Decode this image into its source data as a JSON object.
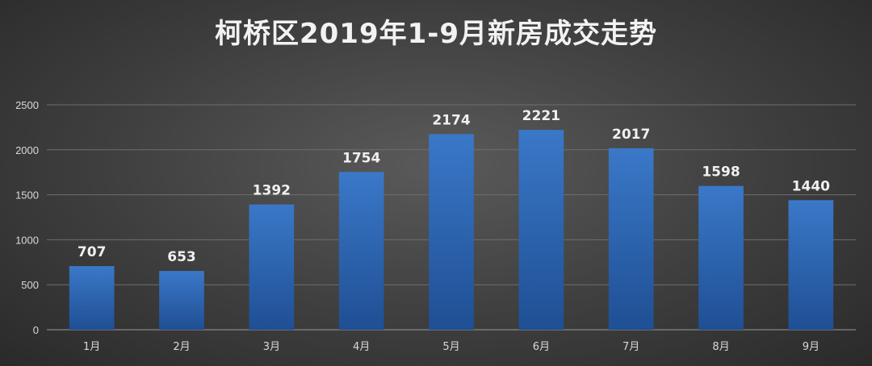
{
  "chart_data": {
    "type": "bar",
    "title": "柯桥区2019年1-9月新房成交走势",
    "categories": [
      "1月",
      "2月",
      "3月",
      "4月",
      "5月",
      "6月",
      "7月",
      "8月",
      "9月"
    ],
    "values": [
      707,
      653,
      1392,
      1754,
      2174,
      2221,
      2017,
      1598,
      1440
    ],
    "ylim": [
      0,
      2500
    ],
    "yticks": [
      0,
      500,
      1000,
      1500,
      2000,
      2500
    ],
    "grid": true,
    "legend": "none",
    "bar_color": "#3a78c8",
    "bar_color_dark": "#1f4f94"
  }
}
